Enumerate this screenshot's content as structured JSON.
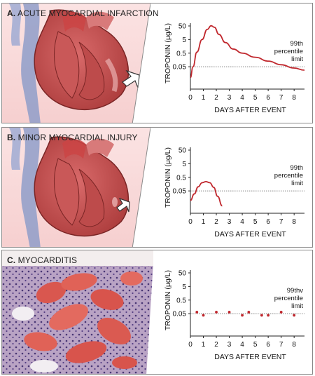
{
  "panels": [
    {
      "letter": "A.",
      "title": "ACUTE MYOCARDIAL INFARCTION",
      "illustration": "heart-with-infarction-arrow",
      "chart_data": {
        "type": "line",
        "ylabel": "TROPONIN (μg/L)",
        "xlabel": "DAYS AFTER EVENT",
        "x_ticks": [
          0,
          1,
          2,
          3,
          4,
          5,
          6,
          7,
          8
        ],
        "y_ticks": [
          "0.05",
          "0.5",
          "5",
          "50"
        ],
        "y_scale": "log",
        "threshold": 0.05,
        "threshold_label": [
          "99th",
          "percentile",
          "limit"
        ],
        "series": [
          {
            "color": "#c0272d",
            "x": [
              0,
              0.2,
              0.5,
              0.9,
              1.3,
              1.6,
              1.85,
              2.2,
              2.7,
              3.3,
              4,
              5,
              6,
              7,
              8,
              8.8
            ],
            "y": [
              0.008,
              0.05,
              0.6,
              5,
              28,
              52,
              40,
              12,
              3,
              1,
              0.5,
              0.25,
              0.13,
              0.07,
              0.04,
              0.028
            ]
          }
        ]
      }
    },
    {
      "letter": "B.",
      "title": "MINOR MYOCARDIAL INJURY",
      "illustration": "heart-with-small-injury-arrow",
      "chart_data": {
        "type": "line",
        "ylabel": "TROPONIN (μg/L)",
        "xlabel": "DAYS AFTER EVENT",
        "x_ticks": [
          0,
          1,
          2,
          3,
          4,
          5,
          6,
          7,
          8
        ],
        "y_ticks": [
          "0.05",
          "0.5",
          "5",
          "50"
        ],
        "y_scale": "log",
        "threshold": 0.05,
        "threshold_label": [
          "99th",
          "percentile",
          "limit"
        ],
        "series": [
          {
            "color": "#c0272d",
            "x": [
              0,
              0.3,
              0.6,
              0.9,
              1.2,
              1.5,
              1.8,
              2.1,
              2.45
            ],
            "y": [
              0.01,
              0.03,
              0.1,
              0.2,
              0.24,
              0.2,
              0.09,
              0.02,
              0.004
            ]
          }
        ]
      }
    },
    {
      "letter": "C.",
      "title": "MYOCARDITIS",
      "illustration": "myocarditis-histology",
      "chart_data": {
        "type": "scatter",
        "ylabel": "TROPONIN (μg/L)",
        "xlabel": "DAYS AFTER EVENT",
        "x_ticks": [
          0,
          1,
          2,
          3,
          4,
          5,
          6,
          7,
          8
        ],
        "y_ticks": [
          "0.05",
          "0.5",
          "5",
          "50"
        ],
        "y_scale": "log",
        "threshold": 0.05,
        "threshold_label": [
          "99thv",
          "percentile",
          "limit"
        ],
        "series": [
          {
            "color": "#c0272d",
            "x": [
              0.5,
              1,
              2,
              3,
              4,
              4.5,
              5.5,
              6,
              7,
              8
            ],
            "y": [
              0.065,
              0.038,
              0.065,
              0.065,
              0.038,
              0.065,
              0.038,
              0.038,
              0.065,
              0.038
            ]
          }
        ]
      }
    }
  ]
}
